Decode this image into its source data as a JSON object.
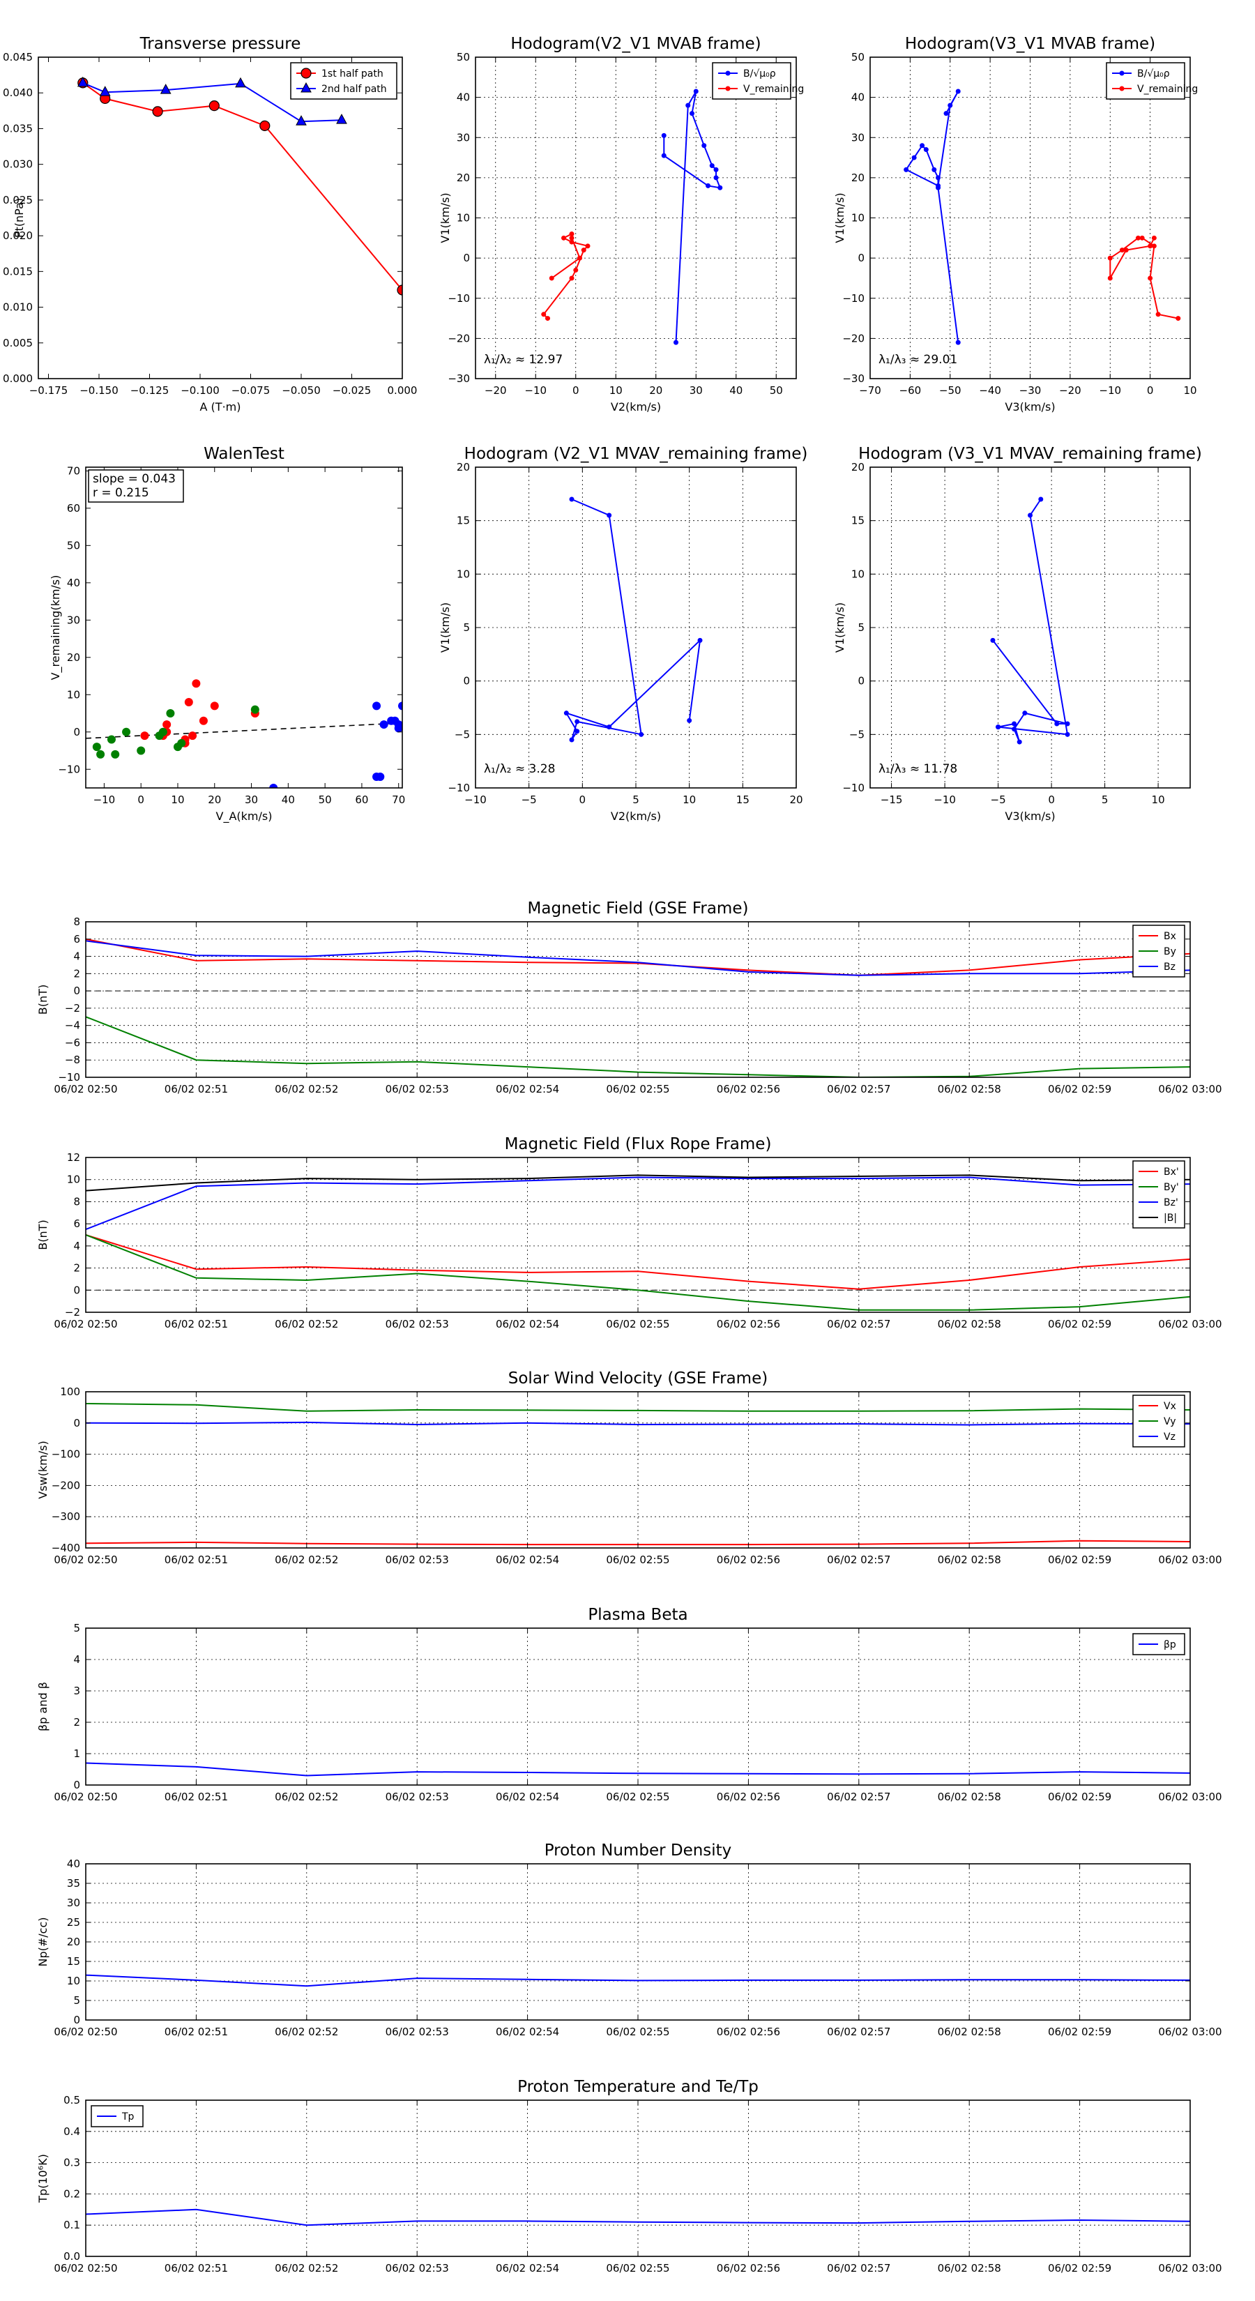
{
  "months": [
    "06/02 02:50",
    "06/02 02:51",
    "06/02 02:52",
    "06/02 02:53",
    "06/02 02:54",
    "06/02 02:55",
    "06/02 02:56",
    "06/02 02:57",
    "06/02 02:58",
    "06/02 02:59",
    "06/02 03:00"
  ],
  "chart_data": [
    {
      "id": "transverse-pressure",
      "type": "line",
      "title": "Transverse pressure",
      "xlabel": "A (T·m)",
      "ylabel": "Pt(nPa)",
      "xlim": [
        -0.18,
        0.0
      ],
      "ylim": [
        0,
        0.045
      ],
      "xticks": [
        -0.175,
        -0.15,
        -0.125,
        -0.1,
        -0.075,
        -0.05,
        -0.025,
        0.0
      ],
      "xticklabels": [
        "−0.175",
        "−0.150",
        "−0.125",
        "−0.100",
        "−0.075",
        "−0.050",
        "−0.025",
        "0.000"
      ],
      "yticks": [
        0,
        0.005,
        0.01,
        0.015,
        0.02,
        0.025,
        0.03,
        0.035,
        0.04,
        0.045
      ],
      "yticklabels": [
        "0.000",
        "0.005",
        "0.010",
        "0.015",
        "0.020",
        "0.025",
        "0.030",
        "0.035",
        "0.040",
        "0.045"
      ],
      "grid": false,
      "legend": "top-right",
      "series": [
        {
          "name": "1st half path",
          "color": "#ff0000",
          "marker": "circle-red",
          "x": [
            -0.158,
            -0.147,
            -0.121,
            -0.093,
            -0.068,
            0.0
          ],
          "y": [
            0.0414,
            0.0392,
            0.0374,
            0.0382,
            0.0354,
            0.0124
          ]
        },
        {
          "name": "2nd half path",
          "color": "#0000ff",
          "marker": "triangle",
          "x": [
            -0.158,
            -0.147,
            -0.117,
            -0.08,
            -0.05,
            -0.03
          ],
          "y": [
            0.0414,
            0.0401,
            0.0404,
            0.0413,
            0.036,
            0.0362
          ]
        }
      ]
    },
    {
      "id": "hodogram-v2v1-mvab",
      "type": "line",
      "title": "Hodogram(V2_V1 MVAB frame)",
      "xlabel": "V2(km/s)",
      "ylabel": "V1(km/s)",
      "xlim": [
        -25,
        55
      ],
      "ylim": [
        -30,
        50
      ],
      "xticks": [
        -20,
        -10,
        0,
        10,
        20,
        30,
        40,
        50
      ],
      "xticklabels": [
        "−20",
        "−10",
        "0",
        "10",
        "20",
        "30",
        "40",
        "50"
      ],
      "yticks": [
        -30,
        -20,
        -10,
        0,
        10,
        20,
        30,
        40,
        50
      ],
      "yticklabels": [
        "−30",
        "−20",
        "−10",
        "0",
        "10",
        "20",
        "30",
        "40",
        "50"
      ],
      "grid": true,
      "legend": "top-right",
      "annotation": "λ₁/λ₂ ≈ 12.97",
      "series": [
        {
          "name": "B/√μ₀ρ",
          "color": "#0000ff",
          "marker": "dot",
          "x": [
            25,
            28,
            30,
            29,
            32,
            34,
            35,
            35,
            36,
            33,
            22,
            22
          ],
          "y": [
            -21,
            38,
            41.5,
            36,
            28,
            23,
            22,
            20,
            17.5,
            18,
            25.5,
            30.5
          ]
        },
        {
          "name": "V_remaining",
          "color": "#ff0000",
          "marker": "dot",
          "x": [
            -7,
            -8,
            -1,
            0,
            2,
            3,
            -1,
            -3,
            -1,
            -1,
            1,
            -6
          ],
          "y": [
            -15,
            -14,
            -5,
            -3,
            2,
            3,
            4,
            5,
            6,
            5,
            0,
            -5
          ]
        }
      ]
    },
    {
      "id": "hodogram-v3v1-mvab",
      "type": "line",
      "title": "Hodogram(V3_V1 MVAB frame)",
      "xlabel": "V3(km/s)",
      "ylabel": "V1(km/s)",
      "xlim": [
        -70,
        10
      ],
      "ylim": [
        -30,
        50
      ],
      "xticks": [
        -70,
        -60,
        -50,
        -40,
        -30,
        -20,
        -10,
        0,
        10
      ],
      "xticklabels": [
        "−70",
        "−60",
        "−50",
        "−40",
        "−30",
        "−20",
        "−10",
        "0",
        "10"
      ],
      "yticks": [
        -30,
        -20,
        -10,
        0,
        10,
        20,
        30,
        40,
        50
      ],
      "yticklabels": [
        "−30",
        "−20",
        "−10",
        "0",
        "10",
        "20",
        "30",
        "40",
        "50"
      ],
      "grid": true,
      "legend": "top-right",
      "annotation": "λ₁/λ₃ ≈ 29.01",
      "series": [
        {
          "name": "B/√μ₀ρ",
          "color": "#0000ff",
          "marker": "dot",
          "x": [
            -48,
            -53,
            -53,
            -54,
            -56,
            -57,
            -59,
            -61,
            -53,
            -50,
            -48,
            -51
          ],
          "y": [
            -21,
            17.5,
            20,
            22,
            27,
            28,
            25,
            22,
            18,
            38,
            41.5,
            36
          ]
        },
        {
          "name": "V_remaining",
          "color": "#ff0000",
          "marker": "dot",
          "x": [
            7,
            2,
            0,
            1,
            -2,
            -3,
            -7,
            -10,
            -10,
            -6,
            0,
            1
          ],
          "y": [
            -15,
            -14,
            -5,
            3,
            5,
            5,
            2,
            0,
            -5,
            2,
            3,
            5
          ]
        }
      ]
    },
    {
      "id": "walen-test",
      "type": "scatter",
      "title": "WalenTest",
      "xlabel": "V_A(km/s)",
      "ylabel": "V_remaining(km/s)",
      "xlim": [
        -15,
        71
      ],
      "ylim": [
        -15,
        71
      ],
      "xticks": [
        -10,
        0,
        10,
        20,
        30,
        40,
        50,
        60,
        70
      ],
      "xticklabels": [
        "−10",
        "0",
        "10",
        "20",
        "30",
        "40",
        "50",
        "60",
        "70"
      ],
      "yticks": [
        -10,
        0,
        10,
        20,
        30,
        40,
        50,
        60,
        70
      ],
      "yticklabels": [
        "−10",
        "0",
        "10",
        "20",
        "30",
        "40",
        "50",
        "60",
        "70"
      ],
      "grid": false,
      "annotation_lines": [
        "slope = 0.043",
        "r = 0.215"
      ],
      "fit_line": {
        "x": [
          -15,
          71
        ],
        "y": [
          -1.7,
          2.4
        ]
      },
      "series": [
        {
          "name": "",
          "color": "#ff0000",
          "x": [
            1,
            6,
            7,
            12,
            13,
            14,
            15,
            17,
            20,
            31,
            7,
            12
          ],
          "y": [
            -1,
            -1,
            2,
            -2,
            8,
            -1,
            13,
            3,
            7,
            5,
            0,
            -3
          ]
        },
        {
          "name": "",
          "color": "#008000",
          "x": [
            -12,
            -11,
            -8,
            -7,
            -4,
            0,
            5,
            8,
            10,
            31,
            6,
            11
          ],
          "y": [
            -4,
            -6,
            -2,
            -6,
            0,
            -5,
            -1,
            5,
            -4,
            6,
            0,
            -3
          ]
        },
        {
          "name": "",
          "color": "#0000ff",
          "x": [
            64,
            65,
            66,
            68,
            69,
            70,
            70,
            71,
            64,
            36
          ],
          "y": [
            7,
            -12,
            2,
            3,
            3,
            2,
            1,
            7,
            -12,
            -15
          ]
        }
      ]
    },
    {
      "id": "hodogram-v2v1-mvav",
      "type": "line",
      "title": "Hodogram (V2_V1 MVAV_remaining frame)",
      "xlabel": "V2(km/s)",
      "ylabel": "V1(km/s)",
      "xlim": [
        -10,
        20
      ],
      "ylim": [
        -10,
        20
      ],
      "xticks": [
        -10,
        -5,
        0,
        5,
        10,
        15,
        20
      ],
      "xticklabels": [
        "−10",
        "−5",
        "0",
        "5",
        "10",
        "15",
        "20"
      ],
      "yticks": [
        -10,
        -5,
        0,
        5,
        10,
        15,
        20
      ],
      "yticklabels": [
        "−10",
        "−5",
        "0",
        "5",
        "10",
        "15",
        "20"
      ],
      "grid": true,
      "annotation": "λ₁/λ₂ ≈ 3.28",
      "series": [
        {
          "name": "",
          "color": "#0000ff",
          "marker": "dot",
          "x": [
            -1,
            2.5,
            5.5,
            -0.5,
            -1,
            -0.5,
            -1.5,
            2.5,
            11,
            10
          ],
          "y": [
            17,
            15.5,
            -5,
            -3.8,
            -5.5,
            -4.7,
            -3,
            -4.3,
            3.8,
            -3.7
          ]
        }
      ]
    },
    {
      "id": "hodogram-v3v1-mvav",
      "type": "line",
      "title": "Hodogram (V3_V1 MVAV_remaining frame)",
      "xlabel": "V3(km/s)",
      "ylabel": "V1(km/s)",
      "xlim": [
        -17,
        13
      ],
      "ylim": [
        -10,
        20
      ],
      "xticks": [
        -15,
        -10,
        -5,
        0,
        5,
        10
      ],
      "xticklabels": [
        "−15",
        "−10",
        "−5",
        "0",
        "5",
        "10"
      ],
      "yticks": [
        -10,
        -5,
        0,
        5,
        10,
        15,
        20
      ],
      "yticklabels": [
        "−10",
        "−5",
        "0",
        "5",
        "10",
        "15",
        "20"
      ],
      "grid": true,
      "annotation": "λ₁/λ₃ ≈ 11.78",
      "series": [
        {
          "name": "",
          "color": "#0000ff",
          "marker": "dot",
          "x": [
            -1,
            -2,
            1.5,
            -5,
            -5,
            -3.5,
            -3,
            -3.5,
            -2.5,
            1.5,
            0.5,
            -5.5
          ],
          "y": [
            17,
            15.5,
            -5,
            -4.3,
            -4.3,
            -4,
            -5.7,
            -4.5,
            -3,
            -4,
            -4,
            3.8
          ]
        }
      ]
    },
    {
      "id": "magnetic-field-gse",
      "type": "line",
      "title": "Magnetic Field (GSE Frame)",
      "ylabel": "B(nT)",
      "ylim": [
        -10,
        8
      ],
      "yticks": [
        -10,
        -8,
        -6,
        -4,
        -2,
        0,
        2,
        4,
        6,
        8
      ],
      "yticklabels": [
        "−10",
        "−8",
        "−6",
        "−4",
        "−2",
        "0",
        "2",
        "4",
        "6",
        "8"
      ],
      "zero_line": true,
      "legend": "right",
      "series": [
        {
          "name": "Bx",
          "color": "#ff0000",
          "values": [
            6,
            3.5,
            3.7,
            3.5,
            3.3,
            3.2,
            2.4,
            1.8,
            2.4,
            3.6,
            4.3
          ]
        },
        {
          "name": "By",
          "color": "#008000",
          "values": [
            -3,
            -8,
            -8.4,
            -8.2,
            -8.8,
            -9.4,
            -9.7,
            -10,
            -9.9,
            -9,
            -8.8
          ]
        },
        {
          "name": "Bz",
          "color": "#0000ff",
          "values": [
            5.8,
            4.1,
            4.0,
            4.6,
            3.9,
            3.3,
            2.2,
            1.8,
            2.0,
            2.0,
            2.4
          ]
        }
      ]
    },
    {
      "id": "magnetic-field-flux-rope",
      "type": "line",
      "title": "Magnetic Field (Flux Rope Frame)",
      "ylabel": "B(nT)",
      "ylim": [
        -2,
        12
      ],
      "yticks": [
        -2,
        0,
        2,
        4,
        6,
        8,
        10,
        12
      ],
      "yticklabels": [
        "−2",
        "0",
        "2",
        "4",
        "6",
        "8",
        "10",
        "12"
      ],
      "zero_line": true,
      "legend": "right",
      "series": [
        {
          "name": "Bx'",
          "color": "#ff0000",
          "values": [
            5,
            1.9,
            2.1,
            1.8,
            1.6,
            1.7,
            0.8,
            0.1,
            0.9,
            2.1,
            2.8
          ]
        },
        {
          "name": "By'",
          "color": "#008000",
          "values": [
            5,
            1.1,
            0.9,
            1.5,
            0.8,
            0,
            -1,
            -1.8,
            -1.8,
            -1.5,
            -0.6
          ]
        },
        {
          "name": "Bz'",
          "color": "#0000ff",
          "values": [
            5.5,
            9.4,
            9.7,
            9.6,
            9.9,
            10.2,
            10.1,
            10.1,
            10.2,
            9.5,
            9.6
          ]
        },
        {
          "name": "|B|",
          "color": "#000000",
          "values": [
            9,
            9.7,
            10.1,
            10,
            10.1,
            10.4,
            10.2,
            10.3,
            10.4,
            9.9,
            10
          ]
        }
      ]
    },
    {
      "id": "solar-wind-velocity",
      "type": "line",
      "title": "Solar Wind Velocity (GSE Frame)",
      "ylabel": "Vsw(km/s)",
      "ylim": [
        -400,
        100
      ],
      "yticks": [
        -400,
        -300,
        -200,
        -100,
        0,
        100
      ],
      "yticklabels": [
        "−400",
        "−300",
        "−200",
        "−100",
        "0",
        "100"
      ],
      "legend": "right",
      "series": [
        {
          "name": "Vx",
          "color": "#ff0000",
          "values": [
            -385,
            -382,
            -386,
            -388,
            -389,
            -389,
            -389,
            -388,
            -385,
            -377,
            -380
          ]
        },
        {
          "name": "Vy",
          "color": "#008000",
          "values": [
            62,
            58,
            38,
            42,
            41,
            40,
            38,
            38,
            39,
            45,
            42
          ]
        },
        {
          "name": "Vz",
          "color": "#0000ff",
          "values": [
            0,
            -1,
            2,
            -5,
            0,
            -5,
            -4,
            -3,
            -6,
            -2,
            -3
          ]
        }
      ]
    },
    {
      "id": "plasma-beta",
      "type": "line",
      "title": "Plasma Beta",
      "ylabel": "βp and β",
      "ylim": [
        0,
        5
      ],
      "yticks": [
        0,
        1,
        2,
        3,
        4,
        5
      ],
      "yticklabels": [
        "0",
        "1",
        "2",
        "3",
        "4",
        "5"
      ],
      "legend": "top-right",
      "series": [
        {
          "name": "βp",
          "color": "#0000ff",
          "values": [
            0.7,
            0.58,
            0.3,
            0.42,
            0.4,
            0.37,
            0.36,
            0.35,
            0.36,
            0.42,
            0.38
          ]
        }
      ]
    },
    {
      "id": "proton-number-density",
      "type": "line",
      "title": "Proton Number Density",
      "ylabel": "Np(#/cc)",
      "ylim": [
        0,
        40
      ],
      "yticks": [
        0,
        5,
        10,
        15,
        20,
        25,
        30,
        35,
        40
      ],
      "yticklabels": [
        "0",
        "5",
        "10",
        "15",
        "20",
        "25",
        "30",
        "35",
        "40"
      ],
      "series": [
        {
          "name": "",
          "color": "#0000ff",
          "values": [
            11.5,
            10.2,
            8.7,
            10.7,
            10.4,
            10.1,
            10.2,
            10.2,
            10.3,
            10.3,
            10.2
          ]
        }
      ]
    },
    {
      "id": "proton-temperature",
      "type": "line",
      "title": "Proton Temperature and Te/Tp",
      "ylabel": "Tp(10⁶K)",
      "ylim": [
        0,
        0.5
      ],
      "yticks": [
        0,
        0.1,
        0.2,
        0.3,
        0.4,
        0.5
      ],
      "yticklabels": [
        "0.0",
        "0.1",
        "0.2",
        "0.3",
        "0.4",
        "0.5"
      ],
      "legend": "top-left",
      "series": [
        {
          "name": "Tp",
          "color": "#0000ff",
          "values": [
            0.135,
            0.15,
            0.1,
            0.113,
            0.113,
            0.11,
            0.108,
            0.107,
            0.112,
            0.116,
            0.112
          ]
        }
      ]
    }
  ]
}
